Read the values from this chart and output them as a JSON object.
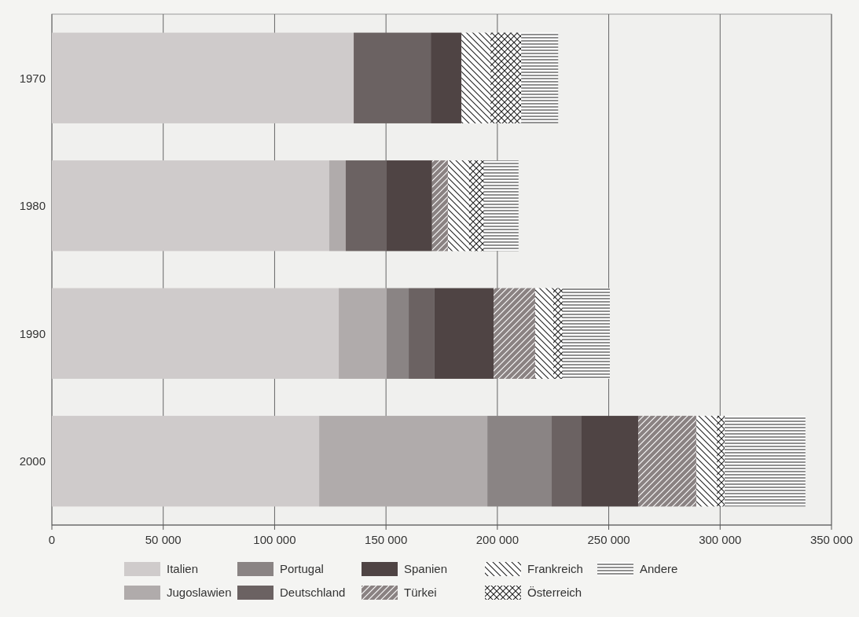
{
  "chart_data": {
    "type": "bar",
    "orientation": "horizontal",
    "stacked": true,
    "categories": [
      "1970",
      "1980",
      "1990",
      "2000"
    ],
    "series": [
      {
        "name": "Italien",
        "color": "#cfcbcb",
        "values": [
          135500,
          124500,
          128800,
          120000
        ]
      },
      {
        "name": "Jugoslawien",
        "color": "#b0abab",
        "values": [
          0,
          7400,
          21500,
          75500
        ]
      },
      {
        "name": "Portugal",
        "color": "#8a8484",
        "values": [
          0,
          0,
          9900,
          28900
        ]
      },
      {
        "name": "Deutschland",
        "color": "#6b6262",
        "values": [
          34600,
          18300,
          11600,
          13400
        ]
      },
      {
        "name": "Spanien",
        "color": "#4f4444",
        "values": [
          13800,
          20500,
          26500,
          25400
        ]
      },
      {
        "name": "Türkei",
        "color": "#3a3232",
        "values": [
          0,
          7100,
          18700,
          26100
        ]
      },
      {
        "name": "Frankreich",
        "color": "#222222",
        "values": [
          13000,
          9500,
          8100,
          9200
        ]
      },
      {
        "name": "Österreich",
        "color": "#222222",
        "values": [
          13800,
          6700,
          4200,
          3500
        ]
      },
      {
        "name": "Andere",
        "color": "#222222",
        "values": [
          16600,
          15500,
          21200,
          36300
        ]
      }
    ],
    "xlim": [
      0,
      350000
    ],
    "xticks": [
      0,
      {
        "value": 50000,
        "label": "50 000"
      },
      {
        "value": 100000,
        "label": "100 000"
      },
      {
        "value": 150000,
        "label": "150 000"
      },
      {
        "value": 200000,
        "label": "200 000"
      },
      {
        "value": 250000,
        "label": "250 000"
      },
      {
        "value": 300000,
        "label": "300 000"
      },
      {
        "value": 350000,
        "label": "350 000"
      }
    ],
    "grid": "x",
    "legend": "bottom"
  }
}
